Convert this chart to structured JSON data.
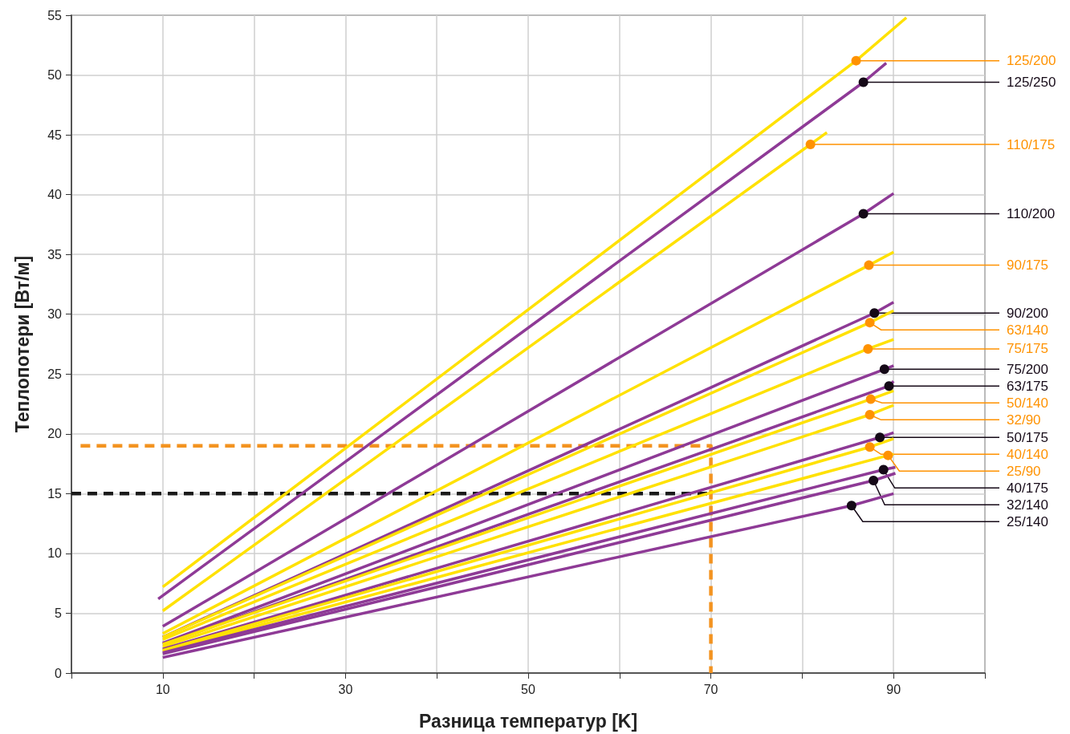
{
  "chart_data": {
    "type": "line",
    "xlabel": "Разница температур [K]",
    "ylabel": "Теплопотери [Вт/м]",
    "xlim": [
      0,
      100
    ],
    "xticks": [
      {
        "value": 0,
        "label": null
      },
      10,
      {
        "value": 20,
        "label": null
      },
      30,
      {
        "value": 40,
        "label": null
      },
      50,
      {
        "value": 60,
        "label": null
      },
      70,
      {
        "value": 80,
        "label": null
      },
      90,
      {
        "value": 100,
        "label": null
      }
    ],
    "ylim": [
      0,
      55
    ],
    "yticks": [
      0,
      5,
      10,
      15,
      20,
      25,
      30,
      35,
      40,
      45,
      50,
      55
    ],
    "grid": true,
    "series": [
      {
        "name": "125/200",
        "color": "#ffe100",
        "x": [
          10,
          85.9,
          91.4
        ],
        "values": [
          7.2,
          51.2,
          54.8
        ]
      },
      {
        "name": "125/250",
        "color": "#8e3a96",
        "x": [
          9.5,
          86.7,
          89.2
        ],
        "values": [
          6.2,
          49.4,
          51.0
        ]
      },
      {
        "name": "110/175",
        "color": "#ffe100",
        "x": [
          10,
          80.9,
          82.7
        ],
        "values": [
          5.2,
          44.2,
          45.2
        ]
      },
      {
        "name": "110/200",
        "color": "#8e3a96",
        "x": [
          10,
          86.7,
          90
        ],
        "values": [
          3.9,
          38.4,
          40.1
        ]
      },
      {
        "name": "90/175",
        "color": "#ffe100",
        "x": [
          10,
          87.3,
          90
        ],
        "values": [
          3.3,
          34.1,
          35.2
        ]
      },
      {
        "name": "90/200",
        "color": "#8e3a96",
        "x": [
          10,
          87.9,
          90
        ],
        "values": [
          3.0,
          30.1,
          31.0
        ]
      },
      {
        "name": "63/140",
        "color": "#ffe100",
        "x": [
          10,
          87.4,
          90
        ],
        "values": [
          3.0,
          29.3,
          30.3
        ]
      },
      {
        "name": "75/175",
        "color": "#ffe100",
        "x": [
          10,
          87.2,
          90
        ],
        "values": [
          2.8,
          27.1,
          27.9
        ]
      },
      {
        "name": "75/200",
        "color": "#8e3a96",
        "x": [
          10,
          89.0,
          90
        ],
        "values": [
          2.5,
          25.4,
          25.7
        ]
      },
      {
        "name": "63/175",
        "color": "#8e3a96",
        "x": [
          10,
          89.5,
          90
        ],
        "values": [
          2.4,
          24.0,
          24.4
        ]
      },
      {
        "name": "50/140",
        "color": "#ffe100",
        "x": [
          10,
          87.5,
          90
        ],
        "values": [
          2.4,
          22.9,
          23.6
        ]
      },
      {
        "name": "32/90",
        "color": "#ffe100",
        "x": [
          10,
          87.4,
          90
        ],
        "values": [
          2.2,
          21.6,
          22.4
        ]
      },
      {
        "name": "50/175",
        "color": "#8e3a96",
        "x": [
          10,
          88.5,
          90
        ],
        "values": [
          2.0,
          19.7,
          20.1
        ]
      },
      {
        "name": "40/140",
        "color": "#ffe100",
        "x": [
          10,
          87.4,
          90
        ],
        "values": [
          1.9,
          18.9,
          19.6
        ]
      },
      {
        "name": "25/90",
        "color": "#ffe100",
        "x": [
          10,
          89.4,
          90
        ],
        "values": [
          1.8,
          18.2,
          18.3
        ]
      },
      {
        "name": "40/175",
        "color": "#8e3a96",
        "x": [
          10,
          88.9,
          90.2
        ],
        "values": [
          1.7,
          17.0,
          17.2
        ]
      },
      {
        "name": "32/140",
        "color": "#8e3a96",
        "x": [
          10,
          87.8,
          90.2
        ],
        "values": [
          1.6,
          16.1,
          16.7
        ]
      },
      {
        "name": "25/140",
        "color": "#8e3a96",
        "x": [
          10,
          85.4,
          90
        ],
        "values": [
          1.3,
          14.0,
          15.0
        ]
      },
      {
        "color": "#f39320",
        "line_style": "dashed",
        "x": [
          1,
          70,
          70
        ],
        "values": [
          19,
          19,
          0
        ]
      },
      {
        "color": "#1a1a1a",
        "line_style": "dashed",
        "x": [
          0,
          70
        ],
        "values": [
          15,
          15
        ]
      }
    ]
  }
}
